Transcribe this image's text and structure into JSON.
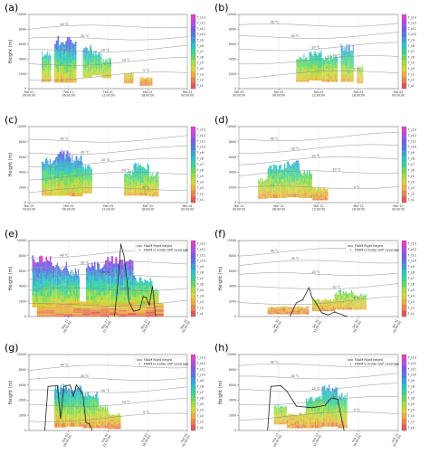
{
  "chart_data": [
    {
      "type": "heatmap",
      "panel_label": "(a)",
      "ylabel": "Height (m)",
      "yticks": [
        0,
        2000,
        4000,
        6000,
        8000,
        10000
      ],
      "ylim": [
        0,
        10000
      ],
      "xticks": [
        "Feb 01\n00:00:00",
        "Feb 01\n06:00:00",
        "Feb 01\n12:00:00",
        "Feb 01\n18:00:00",
        "Feb 02\n00:00:00"
      ],
      "colorbar_labels": [
        "T_c13",
        "T_c12",
        "T_c11",
        "T_c10",
        "T_c9",
        "T_c8",
        "T_c7",
        "T_c6",
        "T_c5",
        "T_c4",
        "T_c3",
        "T_c2",
        "T_c1"
      ],
      "isotherm_labels": [
        "-40 °C",
        "-30 °C",
        "-20 °C",
        "-10 °C",
        "0 °C"
      ],
      "legend": []
    },
    {
      "type": "heatmap",
      "panel_label": "(b)",
      "ylabel": "",
      "yticks": [
        0,
        2000,
        4000,
        6000,
        8000,
        10000
      ],
      "ylim": [
        0,
        10000
      ],
      "xticks": [
        "Feb 03\n00:00:00",
        "Feb 03\n06:00:00",
        "Feb 03\n12:00:00",
        "Feb 03\n18:00:00",
        "Feb 04\n00:00:00"
      ],
      "colorbar_labels": [
        "T_c13",
        "T_c12",
        "T_c11",
        "T_c10",
        "T_c9",
        "T_c8",
        "T_c7",
        "T_c6",
        "T_c5",
        "T_c4",
        "T_c3",
        "T_c2",
        "T_c1"
      ],
      "isotherm_labels": [
        "-40 °C",
        "-30 °C",
        "-20 °C",
        "-10 °C",
        "0 °C"
      ],
      "legend": []
    },
    {
      "type": "heatmap",
      "panel_label": "(c)",
      "ylabel": "Height (m)",
      "yticks": [
        0,
        2000,
        4000,
        6000,
        8000,
        10000
      ],
      "ylim": [
        0,
        10000
      ],
      "xticks": [
        "Mar 03\n00:00:00",
        "Mar 03\n06:00:00",
        "Mar 03\n12:00:00",
        "Mar 03\n18:00:00",
        "Mar 04\n00:00:00"
      ],
      "colorbar_labels": [
        "T_c13",
        "T_c12",
        "T_c11",
        "T_c10",
        "T_c9",
        "T_c8",
        "T_c7",
        "T_c6",
        "T_c5",
        "T_c4",
        "T_c3",
        "T_c2",
        "T_c1"
      ],
      "isotherm_labels": [
        "-40 °C",
        "-30 °C",
        "-20 °C",
        "-10 °C",
        "0 °C"
      ],
      "legend": []
    },
    {
      "type": "heatmap",
      "panel_label": "(d)",
      "ylabel": "",
      "yticks": [
        0,
        2000,
        4000,
        6000,
        8000,
        10000
      ],
      "ylim": [
        0,
        10000
      ],
      "xticks": [
        "Mar 22\n00:00:00",
        "Mar 22\n06:00:00",
        "Mar 22\n12:00:00",
        "Mar 22\n18:00:00",
        "Mar 23\n00:00:00"
      ],
      "colorbar_labels": [
        "T_c13",
        "T_c12",
        "T_c11",
        "T_c10",
        "T_c9",
        "T_c8",
        "T_c7",
        "T_c6",
        "T_c5",
        "T_c4",
        "T_c3",
        "T_c2",
        "T_c1"
      ],
      "isotherm_labels": [
        "-40 °C",
        "-30 °C",
        "-20 °C",
        "-10 °C",
        "0 °C"
      ],
      "legend": []
    },
    {
      "type": "heatmap",
      "panel_label": "(e)",
      "ylabel": "Height (m)",
      "yticks": [
        0,
        2000,
        4000,
        6000,
        8000,
        10000
      ],
      "ylim": [
        0,
        10000
      ],
      "xticks": [
        "May 17\n06:00:00",
        "May 17\n12:00:00",
        "May 17\n18:00:00",
        "May 18\n00:00:00"
      ],
      "colorbar_labels": [
        "T_c13",
        "T_c12",
        "T_c11",
        "T_c10",
        "T_c9",
        "T_c8",
        "T_c7",
        "T_c6",
        "T_c5",
        "T_c4",
        "T_c3",
        "T_c2",
        "T_c1"
      ],
      "isotherm_labels": [
        "-40 °C",
        "-30 °C",
        "-20 °C",
        "-10 °C",
        "0 °C"
      ],
      "legend": [
        "FAAM flight height",
        "FAAM is inside QVP coverage"
      ]
    },
    {
      "type": "heatmap",
      "panel_label": "(f)",
      "ylabel": "Height (m)",
      "yticks": [
        0,
        2000,
        4000,
        6000,
        8000,
        10000
      ],
      "ylim": [
        0,
        10000
      ],
      "xticks": [
        "Jan 30\n06:00:00",
        "Jan 30\n12:00:00",
        "Jan 30\n18:00:00",
        "Jan 31\n00:00:00"
      ],
      "colorbar_labels": [
        "T_c13",
        "T_c12",
        "T_c11",
        "T_c10",
        "T_c9",
        "T_c8",
        "T_c7",
        "T_c6",
        "T_c5",
        "T_c4",
        "T_c3",
        "T_c2",
        "T_c1"
      ],
      "isotherm_labels": [
        "-40 °C",
        "-30 °C",
        "-20 °C",
        "-10 °C",
        "0 °C"
      ],
      "legend": [
        "FAAM flight height",
        "FAAM is inside QVP coverage"
      ]
    },
    {
      "type": "heatmap",
      "panel_label": "(g)",
      "ylabel": "Height (m)",
      "yticks": [
        0,
        2000,
        4000,
        6000,
        8000,
        10000
      ],
      "ylim": [
        0,
        10000
      ],
      "xticks": [
        "Feb 03\n06:00:00",
        "Feb 03\n12:00:00",
        "Feb 03\n18:00:00",
        "Feb 04\n00:00:00"
      ],
      "colorbar_labels": [
        "T_c13",
        "T_c12",
        "T_c11",
        "T_c10",
        "T_c9",
        "T_c8",
        "T_c7",
        "T_c6",
        "T_c5",
        "T_c4",
        "T_c3",
        "T_c2",
        "T_c1"
      ],
      "isotherm_labels": [
        "-40 °C",
        "-30 °C",
        "-20 °C",
        "-10 °C",
        "0 °C"
      ],
      "legend": [
        "FAAM flight height",
        "FAAM is inside QVP coverage"
      ]
    },
    {
      "type": "heatmap",
      "panel_label": "(h)",
      "ylabel": "Height (m)",
      "yticks": [
        0,
        2000,
        4000,
        6000,
        8000,
        10000
      ],
      "ylim": [
        0,
        10000
      ],
      "xticks": [
        "Feb 13\n06:00:00",
        "Feb 13\n12:00:00",
        "Feb 13\n18:00:00",
        "Feb 14\n00:00:00"
      ],
      "colorbar_labels": [
        "T_c13",
        "T_c12",
        "T_c11",
        "T_c10",
        "T_c9",
        "T_c8",
        "T_c7",
        "T_c6",
        "T_c5",
        "T_c4",
        "T_c3",
        "T_c2",
        "T_c1"
      ],
      "isotherm_labels": [
        "-40 °C",
        "-30 °C",
        "-20 °C",
        "-10 °C",
        "0 °C"
      ],
      "legend": [
        "FAAM flight height",
        "FAAM is inside QVP coverage"
      ]
    }
  ],
  "colors": {
    "colorbar": [
      "#e040c8",
      "#b050e0",
      "#7b5ce6",
      "#5a78e0",
      "#3ea0d8",
      "#2ec4c8",
      "#3ad29a",
      "#6ad860",
      "#a8dc40",
      "#d8d438",
      "#e8b040",
      "#e88450",
      "#e05858"
    ],
    "isotherm": "#888888",
    "flight": "#222222",
    "inside_marker": "#222222"
  }
}
